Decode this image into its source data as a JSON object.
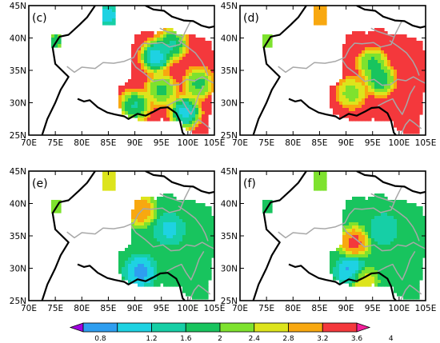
{
  "figure": {
    "panels": [
      {
        "label": "(c)"
      },
      {
        "label": "(d)"
      },
      {
        "label": "(e)"
      },
      {
        "label": "(f)"
      }
    ],
    "x_ticks": [
      "70E",
      "75E",
      "80E",
      "85E",
      "90E",
      "95E",
      "100E",
      "105E"
    ],
    "y_ticks": [
      "25N",
      "30N",
      "35N",
      "40N",
      "45N"
    ],
    "colorbar": {
      "labels": [
        "0.8",
        "1.2",
        "1.6",
        "2",
        "2.4",
        "2.8",
        "3.2",
        "3.6",
        "4"
      ],
      "colors": [
        "#a000e0",
        "#2e9ef0",
        "#1ed2e2",
        "#16cfa6",
        "#18c45e",
        "#7ee22e",
        "#dde41c",
        "#f8a810",
        "#f4383c",
        "#f41e9a"
      ]
    }
  },
  "map_data": {
    "lon_range": [
      70,
      105
    ],
    "lat_range": [
      25,
      45
    ],
    "panels": [
      {
        "label": "(c)",
        "hotspots": [
          {
            "lon": 85,
            "lat": 43.5,
            "value": 0.9
          },
          {
            "lon": 75,
            "lat": 39.5,
            "value": 2.0
          },
          {
            "lon": 94,
            "lat": 37.2,
            "value": 0.9
          },
          {
            "lon": 97,
            "lat": 39.0,
            "value": 1.6
          },
          {
            "lon": 95,
            "lat": 32.0,
            "value": 2.0
          },
          {
            "lon": 90,
            "lat": 29.5,
            "value": 1.6
          },
          {
            "lon": 99.5,
            "lat": 28.5,
            "value": 1.0
          },
          {
            "lon": 102,
            "lat": 33.0,
            "value": 2.0
          }
        ],
        "background_value": 4.0
      },
      {
        "label": "(d)",
        "hotspots": [
          {
            "lon": 85,
            "lat": 43.5,
            "value": 3.4
          },
          {
            "lon": 75,
            "lat": 39.5,
            "value": 2.2
          },
          {
            "lon": 95,
            "lat": 36.0,
            "value": 2.0
          },
          {
            "lon": 96.5,
            "lat": 33.5,
            "value": 1.8
          },
          {
            "lon": 99.5,
            "lat": 28.5,
            "value": 3.8
          },
          {
            "lon": 91,
            "lat": 31.5,
            "value": 2.4
          }
        ],
        "background_value": 4.0
      },
      {
        "label": "(e)",
        "hotspots": [
          {
            "lon": 85,
            "lat": 43.5,
            "value": 3.2
          },
          {
            "lon": 75.5,
            "lat": 39.0,
            "value": 2.8
          },
          {
            "lon": 96.5,
            "lat": 36.0,
            "value": 1.4
          },
          {
            "lon": 91,
            "lat": 29.5,
            "value": 0.9
          },
          {
            "lon": 91,
            "lat": 39.0,
            "value": 3.8
          }
        ],
        "background_value": 2.2
      },
      {
        "label": "(f)",
        "hotspots": [
          {
            "lon": 85,
            "lat": 43.5,
            "value": 2.8
          },
          {
            "lon": 75.5,
            "lat": 39.0,
            "value": 2.0
          },
          {
            "lon": 91.5,
            "lat": 34.0,
            "value": 4.0
          },
          {
            "lon": 91,
            "lat": 29.5,
            "value": 0.9
          },
          {
            "lon": 93,
            "lat": 28.0,
            "value": 3.4
          },
          {
            "lon": 97,
            "lat": 36.0,
            "value": 1.6
          }
        ],
        "background_value": 2.2
      }
    ]
  }
}
